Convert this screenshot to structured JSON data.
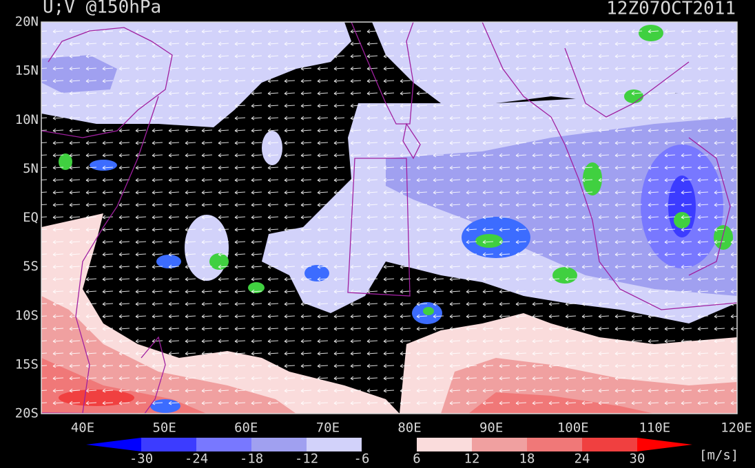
{
  "header": {
    "title": "U;V @150hPa",
    "datetime": "12Z07OCT2011"
  },
  "map": {
    "lat_labels": [
      "20N",
      "15N",
      "10N",
      "5N",
      "EQ",
      "5S",
      "10S",
      "15S",
      "20S"
    ],
    "lon_labels": [
      "40E",
      "50E",
      "60E",
      "70E",
      "80E",
      "90E",
      "100E",
      "110E",
      "120E"
    ]
  },
  "colorbar": {
    "labels": [
      "-30",
      "-24",
      "-18",
      "-12",
      "-6",
      "6",
      "12",
      "18",
      "24",
      "30"
    ],
    "unit": "[m/s]"
  }
}
